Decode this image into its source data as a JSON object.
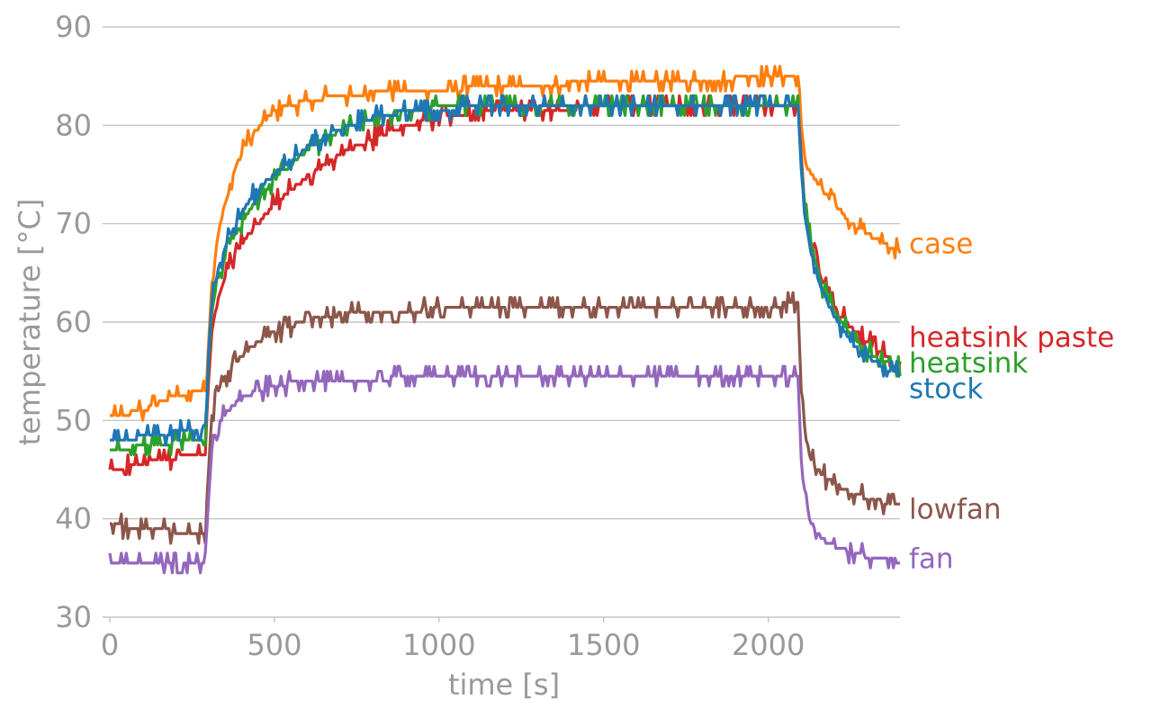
{
  "chart_data": {
    "type": "line",
    "xlabel": "time [s]",
    "ylabel": "temperature [°C]",
    "xlim": [
      0,
      2400
    ],
    "ylim": [
      30,
      90
    ],
    "xticks": [
      0,
      500,
      1000,
      1500,
      2000
    ],
    "yticks": [
      30,
      40,
      50,
      60,
      70,
      80,
      90
    ],
    "grid": "horizontal",
    "legend": "direct labels at right end of each line",
    "series": [
      {
        "name": "case",
        "color": "#ff7f0e",
        "x": [
          0,
          100,
          200,
          290,
          300,
          310,
          330,
          350,
          380,
          420,
          470,
          520,
          600,
          700,
          800,
          1000,
          1200,
          1500,
          1800,
          2000,
          2090,
          2100,
          2105,
          2120,
          2150,
          2200,
          2250,
          2300,
          2350,
          2400
        ],
        "y": [
          50.3,
          51.0,
          52.5,
          53.2,
          58.0,
          64.0,
          69.0,
          72.0,
          75.5,
          78.5,
          80.5,
          81.8,
          82.5,
          83.0,
          83.3,
          83.6,
          84.0,
          84.4,
          84.7,
          84.8,
          84.8,
          80.0,
          77.5,
          75.5,
          74.0,
          72.0,
          70.2,
          69.0,
          68.0,
          67.2
        ]
      },
      {
        "name": "heatsink paste",
        "color": "#d62728",
        "x": [
          0,
          100,
          200,
          290,
          300,
          310,
          330,
          360,
          400,
          450,
          500,
          600,
          700,
          800,
          900,
          1000,
          1100,
          1200,
          1500,
          1800,
          2000,
          2090,
          2100,
          2110,
          2130,
          2160,
          2200,
          2250,
          2300,
          2350,
          2400
        ],
        "y": [
          45.0,
          45.6,
          46.2,
          46.5,
          54.0,
          59.0,
          62.5,
          65.5,
          68.0,
          70.0,
          72.0,
          74.8,
          77.0,
          78.7,
          80.0,
          80.8,
          81.3,
          81.6,
          81.8,
          81.9,
          81.9,
          82.0,
          77.0,
          72.0,
          68.0,
          64.5,
          61.5,
          59.5,
          58.0,
          56.8,
          56.0
        ]
      },
      {
        "name": "heatsink",
        "color": "#2ca02c",
        "x": [
          0,
          100,
          200,
          290,
          300,
          310,
          330,
          360,
          400,
          450,
          500,
          600,
          700,
          800,
          900,
          1000,
          1200,
          1500,
          1800,
          2000,
          2090,
          2100,
          2110,
          2130,
          2160,
          2200,
          2250,
          2300,
          2350,
          2400
        ],
        "y": [
          47.0,
          47.4,
          47.8,
          48.3,
          56.0,
          61.0,
          64.5,
          67.5,
          70.0,
          72.5,
          74.5,
          77.5,
          79.5,
          80.8,
          81.5,
          81.8,
          82.0,
          82.0,
          82.0,
          82.0,
          82.0,
          76.0,
          72.0,
          68.0,
          64.0,
          61.0,
          58.5,
          57.0,
          56.0,
          55.3
        ]
      },
      {
        "name": "stock",
        "color": "#1f77b4",
        "x": [
          0,
          100,
          200,
          290,
          300,
          310,
          330,
          360,
          400,
          450,
          500,
          600,
          700,
          800,
          900,
          1000,
          1200,
          1500,
          1800,
          2000,
          2090,
          2100,
          2110,
          2130,
          2160,
          2200,
          2250,
          2300,
          2350,
          2400
        ],
        "y": [
          47.8,
          48.3,
          48.8,
          49.3,
          57.0,
          62.0,
          65.5,
          68.5,
          71.0,
          73.5,
          75.0,
          77.8,
          79.7,
          80.8,
          81.4,
          81.7,
          81.9,
          82.0,
          82.0,
          82.0,
          82.0,
          75.5,
          71.0,
          67.0,
          63.5,
          60.5,
          58.0,
          56.5,
          55.5,
          54.6
        ]
      },
      {
        "name": "lowfan",
        "color": "#8c564b",
        "x": [
          0,
          100,
          200,
          290,
          300,
          310,
          330,
          360,
          400,
          450,
          500,
          600,
          700,
          800,
          1000,
          1500,
          2000,
          2090,
          2100,
          2110,
          2130,
          2160,
          2200,
          2250,
          2300,
          2350,
          2400
        ],
        "y": [
          39.4,
          39.0,
          38.7,
          38.5,
          45.0,
          50.5,
          53.0,
          55.0,
          56.5,
          58.0,
          59.0,
          60.2,
          60.8,
          61.1,
          61.3,
          61.5,
          61.7,
          61.8,
          53.0,
          48.5,
          46.0,
          44.5,
          43.5,
          42.7,
          42.1,
          41.7,
          41.4
        ]
      },
      {
        "name": "fan",
        "color": "#9467bd",
        "x": [
          0,
          100,
          200,
          290,
          300,
          310,
          330,
          360,
          400,
          450,
          500,
          600,
          700,
          1000,
          1500,
          2000,
          2090,
          2100,
          2110,
          2130,
          2160,
          2200,
          2250,
          2300,
          2350,
          2400
        ],
        "y": [
          35.5,
          35.5,
          35.5,
          35.5,
          42.0,
          47.0,
          49.5,
          51.0,
          52.2,
          53.0,
          53.6,
          54.0,
          54.2,
          54.3,
          54.3,
          54.4,
          54.5,
          46.0,
          42.0,
          39.5,
          38.0,
          37.2,
          36.6,
          36.2,
          35.9,
          35.7
        ]
      }
    ],
    "labels": [
      {
        "text": "case",
        "color": "#ff7f0e",
        "y": 68.0
      },
      {
        "text": "heatsink paste",
        "color": "#d62728",
        "y": 58.5
      },
      {
        "text": "heatsink",
        "color": "#2ca02c",
        "y": 55.9
      },
      {
        "text": "stock",
        "color": "#1f77b4",
        "y": 53.3
      },
      {
        "text": "lowfan",
        "color": "#8c564b",
        "y": 41.0
      },
      {
        "text": "fan",
        "color": "#9467bd",
        "y": 36.0
      }
    ]
  }
}
